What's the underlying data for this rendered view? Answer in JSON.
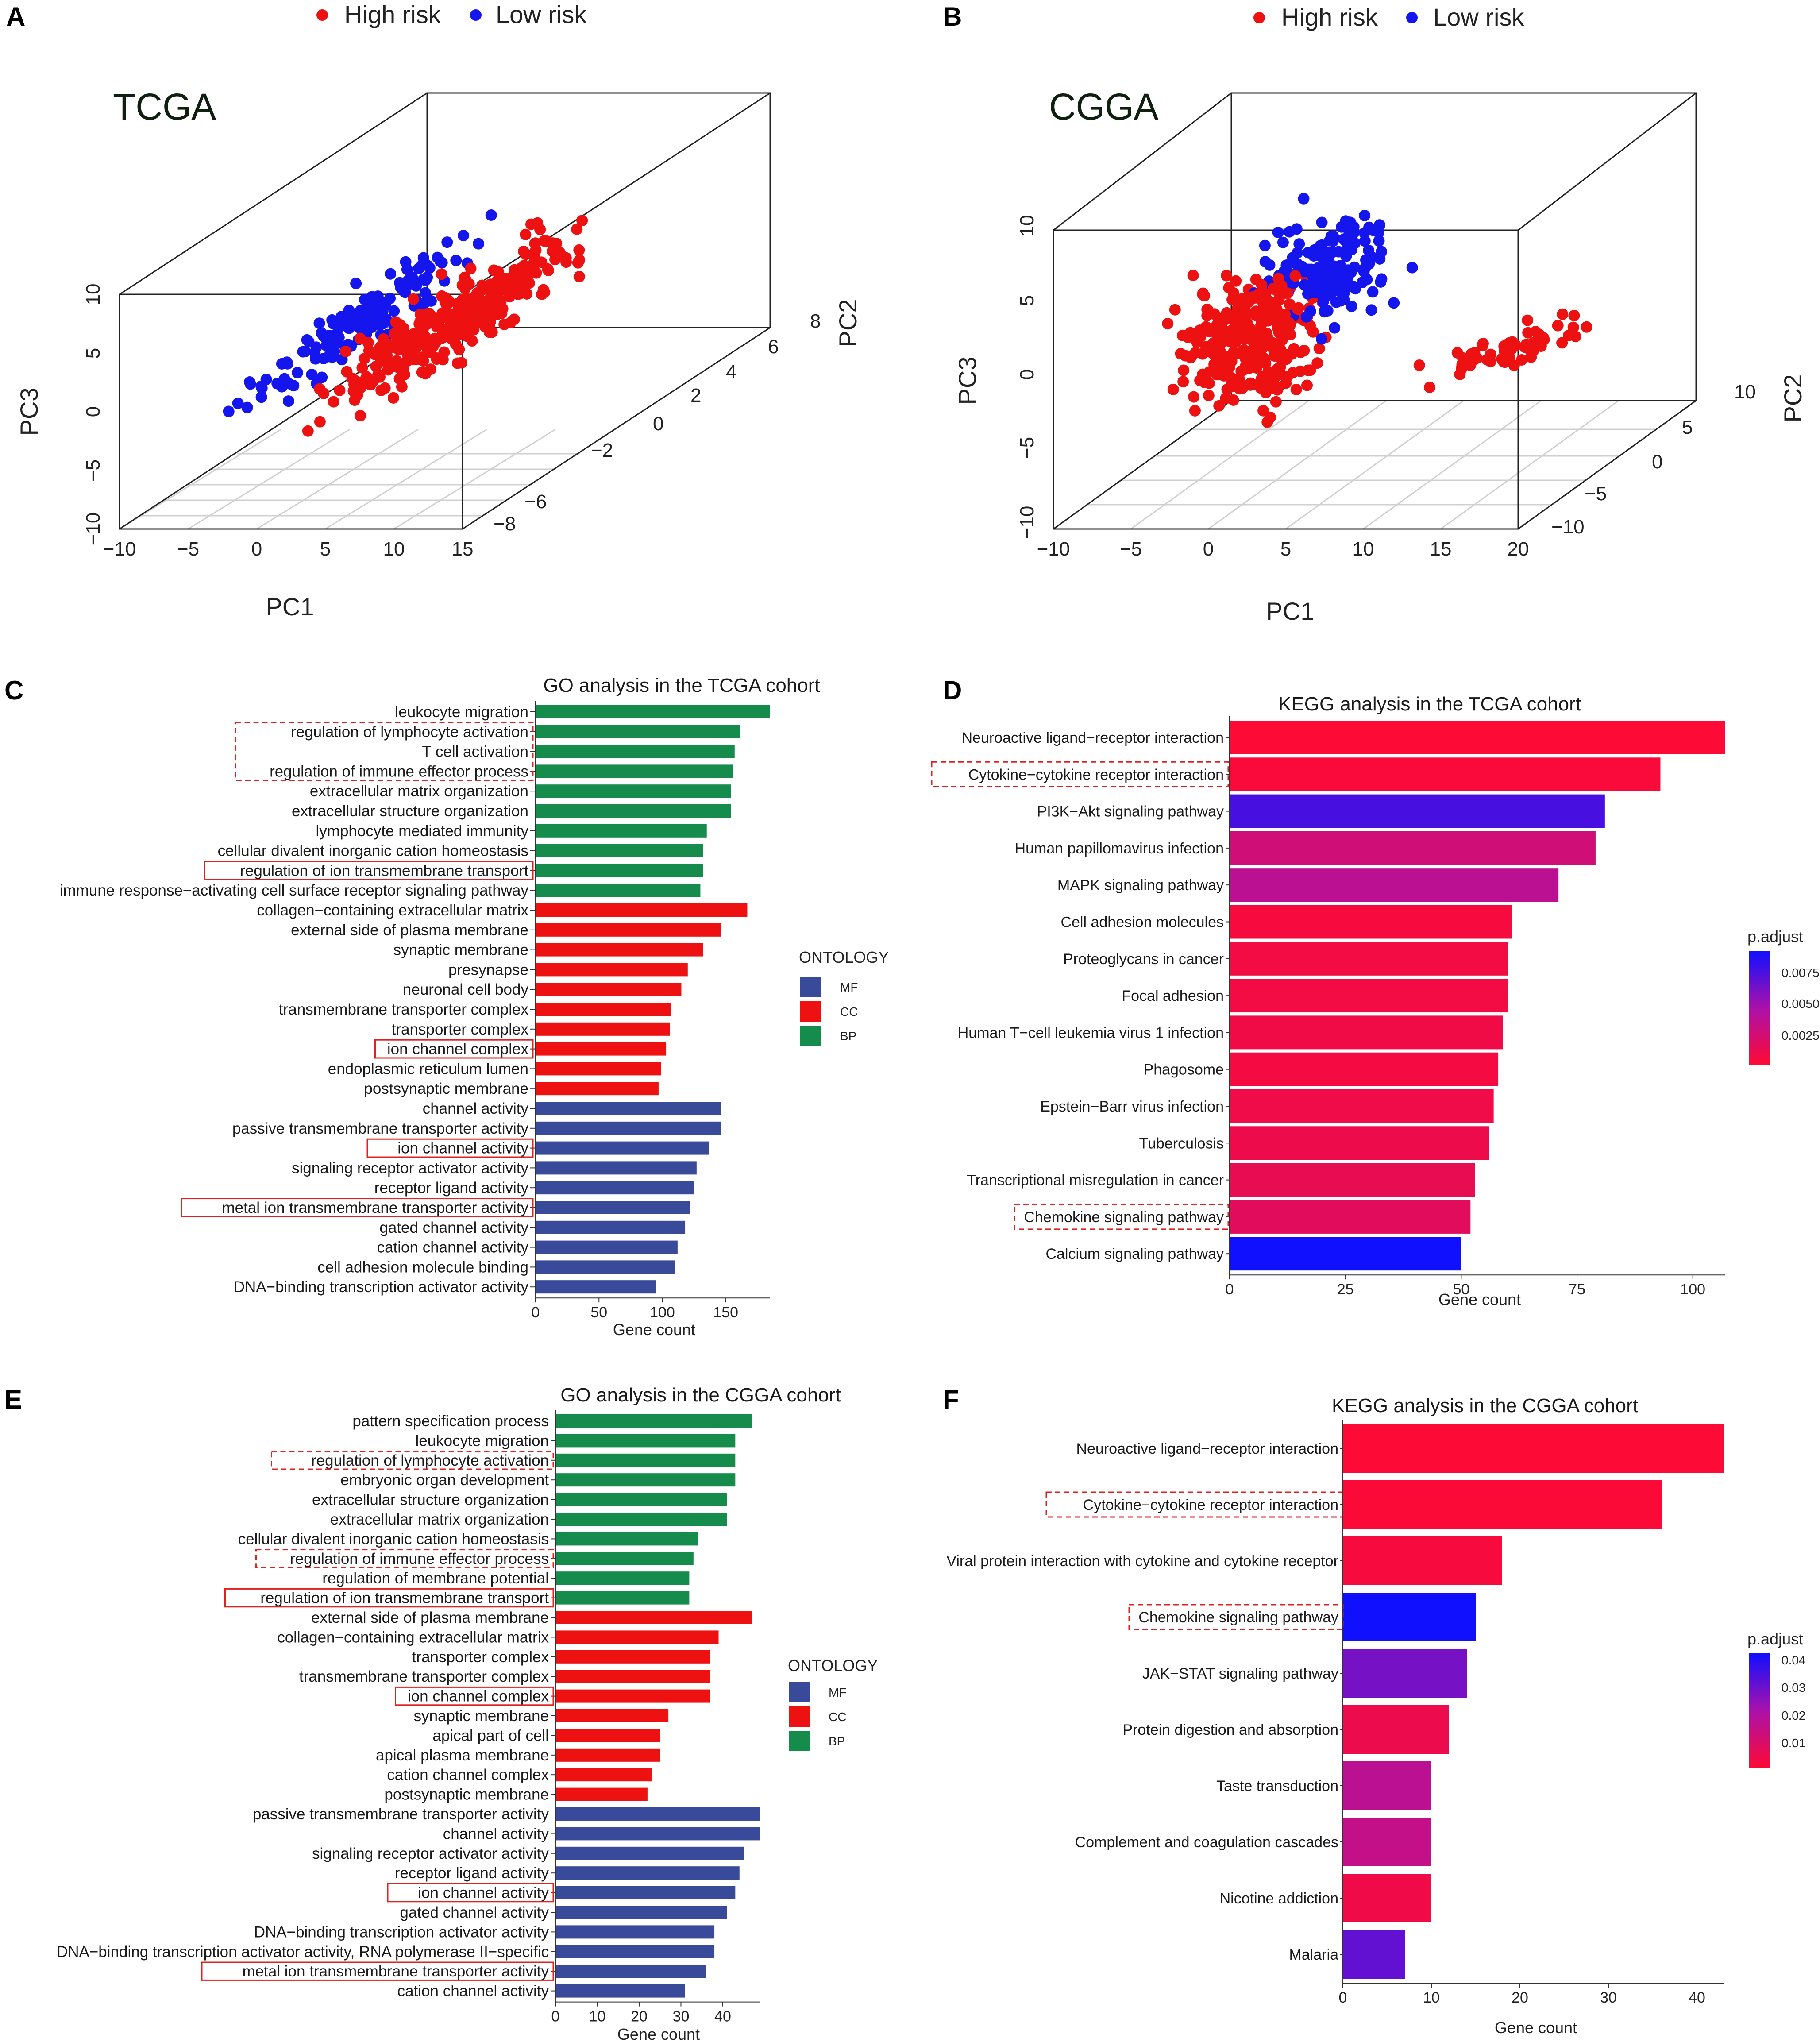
{
  "colors": {
    "high_risk": "#ee1111",
    "low_risk": "#1515ee",
    "MF": "#3a4a9a",
    "CC": "#ee1111",
    "BP": "#168c4c",
    "grad_low": "#ff0a33",
    "grad_mid": "#aa11aa",
    "grad_high": "#1010ff"
  },
  "chart_data": [
    {
      "panel": "A",
      "type": "scatter",
      "title": "TCGA",
      "legend": [
        "High risk",
        "Low risk"
      ],
      "xlabel": "PC1",
      "ylabel": "PC3",
      "zlabel": "PC2",
      "x_ticks": [
        "−10",
        "−5",
        "0",
        "5",
        "10",
        "15"
      ],
      "y_ticks": [
        "−10",
        "−5",
        "0",
        "5",
        "10"
      ],
      "z_ticks": [
        "−8",
        "−6",
        "−2",
        "0",
        "2",
        "4",
        "6",
        "8"
      ],
      "xlim": [
        -10,
        15
      ],
      "ylim": [
        -10,
        10
      ],
      "zlim": [
        -8,
        8
      ]
    },
    {
      "panel": "B",
      "type": "scatter",
      "title": "CGGA",
      "legend": [
        "High risk",
        "Low risk"
      ],
      "xlabel": "PC1",
      "ylabel": "PC3",
      "zlabel": "PC2",
      "x_ticks": [
        "−10",
        "−5",
        "0",
        "5",
        "10",
        "15",
        "20"
      ],
      "y_ticks": [
        "−10",
        "−5",
        "0",
        "5",
        "10"
      ],
      "z_ticks": [
        "−10",
        "−5",
        "0",
        "5",
        "10"
      ],
      "xlim": [
        -10,
        20
      ],
      "ylim": [
        -10,
        10
      ],
      "zlim": [
        -10,
        10
      ]
    },
    {
      "panel": "C",
      "type": "bar",
      "title": "GO analysis in the TCGA cohort",
      "xlabel": "Gene count",
      "xlim": [
        0,
        185
      ],
      "ticks": [
        0,
        50,
        100,
        150
      ],
      "legend_title": "ONTOLOGY",
      "legend": [
        "MF",
        "CC",
        "BP"
      ],
      "categories": [
        "leukocyte migration",
        "regulation of lymphocyte activation",
        "T cell activation",
        "regulation of immune effector process",
        "extracellular matrix organization",
        "extracellular structure organization",
        "lymphocyte mediated immunity",
        "cellular divalent inorganic cation homeostasis",
        "regulation of ion transmembrane transport",
        "immune response−activating cell surface receptor signaling pathway",
        "collagen−containing extracellular matrix",
        "external side of plasma membrane",
        "synaptic membrane",
        "presynapse",
        "neuronal cell body",
        "transmembrane transporter complex",
        "transporter complex",
        "ion channel complex",
        "endoplasmic reticulum lumen",
        "postsynaptic membrane",
        "channel activity",
        "passive transmembrane transporter activity",
        "ion channel activity",
        "signaling receptor activator activity",
        "receptor ligand activity",
        "metal ion transmembrane transporter activity",
        "gated channel activity",
        "cation channel activity",
        "cell adhesion molecule binding",
        "DNA−binding transcription activator activity"
      ],
      "values": [
        185,
        161,
        157,
        156,
        154,
        154,
        135,
        132,
        132,
        130,
        167,
        146,
        132,
        120,
        115,
        107,
        106,
        103,
        99,
        97,
        146,
        146,
        137,
        127,
        125,
        122,
        118,
        112,
        110,
        95
      ],
      "ontology": [
        "BP",
        "BP",
        "BP",
        "BP",
        "BP",
        "BP",
        "BP",
        "BP",
        "BP",
        "BP",
        "CC",
        "CC",
        "CC",
        "CC",
        "CC",
        "CC",
        "CC",
        "CC",
        "CC",
        "CC",
        "MF",
        "MF",
        "MF",
        "MF",
        "MF",
        "MF",
        "MF",
        "MF",
        "MF",
        "MF"
      ],
      "boxes": [
        {
          "from": 1,
          "to": 3,
          "style": "dashed"
        },
        {
          "from": 8,
          "to": 8,
          "style": "solid"
        },
        {
          "from": 17,
          "to": 17,
          "style": "solid"
        },
        {
          "from": 22,
          "to": 22,
          "style": "solid"
        },
        {
          "from": 25,
          "to": 25,
          "style": "solid"
        }
      ]
    },
    {
      "panel": "D",
      "type": "bar",
      "title": "KEGG analysis in the TCGA cohort",
      "xlabel": "Gene count",
      "xlim": [
        0,
        107
      ],
      "ticks": [
        0,
        25,
        50,
        75,
        100
      ],
      "legend_title": "p.adjust",
      "legend_ticks": [
        "0.0075",
        "0.0050",
        "0.0025"
      ],
      "pmax": 0.0088,
      "categories": [
        "Neuroactive ligand−receptor interaction",
        "Cytokine−cytokine receptor interaction",
        "PI3K−Akt signaling pathway",
        "Human papillomavirus infection",
        "MAPK signaling pathway",
        "Cell adhesion molecules",
        "Proteoglycans in cancer",
        "Focal adhesion",
        "Human T−cell leukemia virus 1 infection",
        "Phagosome",
        "Epstein−Barr virus infection",
        "Tuberculosis",
        "Transcriptional misregulation in cancer",
        "Chemokine signaling pathway",
        "Calcium signaling pathway"
      ],
      "values": [
        107,
        93,
        81,
        79,
        71,
        61,
        60,
        60,
        59,
        58,
        57,
        56,
        53,
        52,
        50
      ],
      "p_adjust": [
        0.0001,
        0.0003,
        0.0072,
        0.0025,
        0.0035,
        0.0004,
        0.0006,
        0.0006,
        0.0007,
        0.0005,
        0.0008,
        0.0009,
        0.0012,
        0.0015,
        0.0088
      ],
      "boxes": [
        {
          "from": 1,
          "to": 1,
          "style": "dashed"
        },
        {
          "from": 13,
          "to": 13,
          "style": "dashed"
        }
      ]
    },
    {
      "panel": "E",
      "type": "bar",
      "title": "GO analysis in the CGGA cohort",
      "xlabel": "Gene count",
      "xlim": [
        0,
        49
      ],
      "ticks": [
        0,
        10,
        20,
        30,
        40
      ],
      "legend_title": "ONTOLOGY",
      "legend": [
        "MF",
        "CC",
        "BP"
      ],
      "categories": [
        "pattern specification process",
        "leukocyte migration",
        "regulation of lymphocyte activation",
        "embryonic organ development",
        "extracellular structure organization",
        "extracellular matrix organization",
        "cellular divalent inorganic cation homeostasis",
        "regulation of immune effector process",
        "regulation of membrane potential",
        "regulation of ion transmembrane transport",
        "external side of plasma membrane",
        "collagen−containing extracellular matrix",
        "transporter complex",
        "transmembrane transporter complex",
        "ion channel complex",
        "synaptic membrane",
        "apical part of cell",
        "apical plasma membrane",
        "cation channel complex",
        "postsynaptic membrane",
        "passive transmembrane transporter activity",
        "channel activity",
        "signaling receptor activator activity",
        "receptor ligand activity",
        "ion channel activity",
        "gated channel activity",
        "DNA−binding transcription activator activity",
        "DNA−binding transcription activator activity, RNA polymerase II−specific",
        "metal ion transmembrane transporter activity",
        "cation channel activity"
      ],
      "values": [
        47,
        43,
        43,
        43,
        41,
        41,
        34,
        33,
        32,
        32,
        47,
        39,
        37,
        37,
        37,
        27,
        25,
        25,
        23,
        22,
        49,
        49,
        45,
        44,
        43,
        41,
        38,
        38,
        36,
        31
      ],
      "ontology": [
        "BP",
        "BP",
        "BP",
        "BP",
        "BP",
        "BP",
        "BP",
        "BP",
        "BP",
        "BP",
        "CC",
        "CC",
        "CC",
        "CC",
        "CC",
        "CC",
        "CC",
        "CC",
        "CC",
        "CC",
        "MF",
        "MF",
        "MF",
        "MF",
        "MF",
        "MF",
        "MF",
        "MF",
        "MF",
        "MF"
      ],
      "boxes": [
        {
          "from": 2,
          "to": 2,
          "style": "dashed"
        },
        {
          "from": 7,
          "to": 7,
          "style": "dashed"
        },
        {
          "from": 9,
          "to": 9,
          "style": "solid"
        },
        {
          "from": 14,
          "to": 14,
          "style": "solid"
        },
        {
          "from": 24,
          "to": 24,
          "style": "solid"
        },
        {
          "from": 28,
          "to": 28,
          "style": "solid"
        }
      ]
    },
    {
      "panel": "F",
      "type": "bar",
      "title": "KEGG analysis in the CGGA cohort",
      "xlabel": "Gene count",
      "xlim": [
        0,
        43
      ],
      "ticks": [
        0,
        10,
        20,
        30,
        40
      ],
      "legend_title": "p.adjust",
      "legend_ticks": [
        "0.04",
        "0.03",
        "0.02",
        "0.01"
      ],
      "pmax": 0.045,
      "categories": [
        "Neuroactive ligand−receptor interaction",
        "Cytokine−cytokine receptor interaction",
        "Viral protein interaction with cytokine and cytokine receptor",
        "Chemokine signaling pathway",
        "JAK−STAT signaling pathway",
        "Protein digestion and absorption",
        "Taste transduction",
        "Complement and coagulation cascades",
        "Nicotine addiction",
        "Malaria"
      ],
      "values": [
        43,
        36,
        18,
        15,
        14,
        12,
        10,
        10,
        10,
        7
      ],
      "p_adjust": [
        0.0005,
        0.001,
        0.002,
        0.045,
        0.03,
        0.005,
        0.018,
        0.016,
        0.004,
        0.033
      ],
      "boxes": [
        {
          "from": 1,
          "to": 1,
          "style": "dashed"
        },
        {
          "from": 3,
          "to": 3,
          "style": "dashed"
        }
      ]
    }
  ]
}
